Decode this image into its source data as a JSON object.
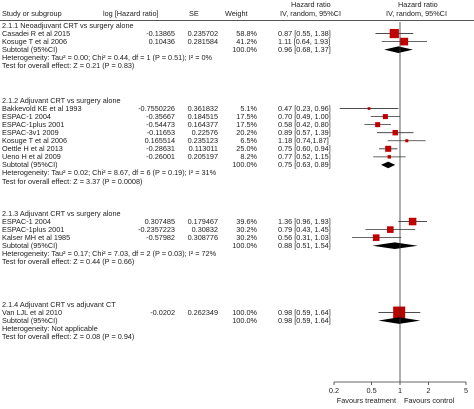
{
  "header": {
    "study": "Study or subgroup",
    "log_hr": "log [Hazard ratio]",
    "se": "SE",
    "weight": "Weight",
    "hr1_line1": "Hazard ratio",
    "hr1_line2": "IV, random, 95%CI",
    "hr2_line1": "Hazard ratio",
    "hr2_line2": "IV, random, 95%CI"
  },
  "chart_data": {
    "type": "forest",
    "x_scale": "log",
    "xlim": [
      0.2,
      5
    ],
    "x_ticks": [
      "0.2",
      "0.5",
      "1",
      "2",
      "5"
    ],
    "x_tick_values": [
      0.2,
      0.5,
      1,
      2,
      5
    ],
    "favours_left": "Favours treatment",
    "favours_right": "Favours control",
    "marker_color": "#c00000",
    "diamond_color": "#000000",
    "groups": [
      {
        "title": "2.1.1 Neoadjuvant CRT vs surgery alone",
        "studies": [
          {
            "name": "Casadei R et al 2015",
            "log_hr": "-0.13865",
            "se": "0.235702",
            "weight": "58.8%",
            "hr_text": "0.87 [0.55, 1.38]",
            "hr": 0.87,
            "lo": 0.55,
            "hi": 1.38,
            "w": 58.8
          },
          {
            "name": "Kosuge T et al 2006",
            "log_hr": "0.10436",
            "se": "0.281584",
            "weight": "41.2%",
            "hr_text": "1.11 [0.64, 1.93]",
            "hr": 1.11,
            "lo": 0.64,
            "hi": 1.93,
            "w": 41.2
          }
        ],
        "subtotal_label": "Subtotal (95%CI)",
        "subtotal_weight": "100.0%",
        "subtotal_text": "0.96 [0.68, 1.37]",
        "subtotal": {
          "hr": 0.96,
          "lo": 0.68,
          "hi": 1.37
        },
        "heterogeneity": "Heterogeneity: Tau² = 0.00; Chi² = 0.44, df = 1 (P = 0.51); I² = 0%",
        "overall": "Test for overall effect: Z = 0.21 (P = 0.83)"
      },
      {
        "title": "2.1.2 Adjuvant CRT vs surgery alone",
        "studies": [
          {
            "name": "Bakkevold KE et al 1993",
            "log_hr": "-0.7550226",
            "se": "0.361832",
            "weight": "5.1%",
            "hr_text": "0.47 [0.23, 0.96]",
            "hr": 0.47,
            "lo": 0.23,
            "hi": 0.96,
            "w": 5.1
          },
          {
            "name": "ESPAC-1 2004",
            "log_hr": "-0.35667",
            "se": "0.184515",
            "weight": "17.5%",
            "hr_text": "0.70 [0.49, 1.00]",
            "hr": 0.7,
            "lo": 0.49,
            "hi": 1.0,
            "w": 17.5
          },
          {
            "name": "ESPAC-1plus 2001",
            "log_hr": "-0.54473",
            "se": "0.164377",
            "weight": "17.5%",
            "hr_text": "0.58 [0.42, 0.80]",
            "hr": 0.58,
            "lo": 0.42,
            "hi": 0.8,
            "w": 17.5
          },
          {
            "name": "ESPAC-3v1 2009",
            "log_hr": "-0.11653",
            "se": "0.22576",
            "weight": "20.2%",
            "hr_text": "0.89 [0.57, 1.39]",
            "hr": 0.89,
            "lo": 0.57,
            "hi": 1.39,
            "w": 20.2
          },
          {
            "name": "Kosuge T et al 2006",
            "log_hr": "0.165514",
            "se": "0.235123",
            "weight": "6.5%",
            "hr_text": "1.18 [0.74,1.87]",
            "hr": 1.18,
            "lo": 0.74,
            "hi": 1.87,
            "w": 6.5
          },
          {
            "name": "Oettle H et al 2013",
            "log_hr": "-0.28631",
            "se": "0.113011",
            "weight": "25.0%",
            "hr_text": "0.75 [0.60, 0.94]",
            "hr": 0.75,
            "lo": 0.6,
            "hi": 0.94,
            "w": 25.0
          },
          {
            "name": "Ueno H et al 2009",
            "log_hr": "-0.26001",
            "se": "0.205197",
            "weight": "8.2%",
            "hr_text": "0.77 [0.52, 1.15]",
            "hr": 0.77,
            "lo": 0.52,
            "hi": 1.15,
            "w": 8.2
          }
        ],
        "subtotal_label": "Subtotal (95%CI)",
        "subtotal_weight": "100.0%",
        "subtotal_text": "0.75 [0.63, 0.89]",
        "subtotal": {
          "hr": 0.75,
          "lo": 0.63,
          "hi": 0.89
        },
        "heterogeneity": "Heterogeneity: Tau² = 0.02; Chi² = 8.67, df = 6 (P = 0.19); I² = 31%",
        "overall": "Test for overall effect: Z = 3.37 (P = 0.0008)"
      },
      {
        "title": "2.1.3 Adjuvant CRT vs surgery alone",
        "studies": [
          {
            "name": "ESPAC-1 2004",
            "log_hr": "0.307485",
            "se": "0.179467",
            "weight": "39.6%",
            "hr_text": "1.36 [0.96, 1.93]",
            "hr": 1.36,
            "lo": 0.96,
            "hi": 1.93,
            "w": 39.6
          },
          {
            "name": "ESPAC-1plus 2001",
            "log_hr": "-0.2357223",
            "se": "0.30832",
            "weight": "30.2%",
            "hr_text": "0.79 [0.43, 1.45]",
            "hr": 0.79,
            "lo": 0.43,
            "hi": 1.45,
            "w": 30.2
          },
          {
            "name": "Kalser MH et al 1985",
            "log_hr": "-0.57982",
            "se": "0.308776",
            "weight": "30.2%",
            "hr_text": "0.56 [0.31, 1.03]",
            "hr": 0.56,
            "lo": 0.31,
            "hi": 1.03,
            "w": 30.2
          }
        ],
        "subtotal_label": "Subtotal (95%CI)",
        "subtotal_weight": "100.0%",
        "subtotal_text": "0.88 [0.51, 1.54]",
        "subtotal": {
          "hr": 0.88,
          "lo": 0.51,
          "hi": 1.54
        },
        "heterogeneity": "Heterogeneity: Tau² = 0.17; Chi² = 7.03, df = 2 (P = 0.03); I² = 72%",
        "overall": "Test for overall effect: Z = 0.44 (P = 0.66)"
      },
      {
        "title": "2.1.4 Adjuvant CRT vs adjuvant CT",
        "studies": [
          {
            "name": "Van LJL et al 2010",
            "log_hr": "-0.0202",
            "se": "0.262349",
            "weight": "100.0%",
            "hr_text": "0.98 [0.59, 1.64]",
            "hr": 0.98,
            "lo": 0.59,
            "hi": 1.64,
            "w": 100.0
          }
        ],
        "subtotal_label": "Subtotal (95%CI)",
        "subtotal_weight": "100.0%",
        "subtotal_text": "0.98 [0.59, 1.64]",
        "subtotal": {
          "hr": 0.98,
          "lo": 0.59,
          "hi": 1.64
        },
        "heterogeneity": "Heterogeneity: Not applicable",
        "overall": "Test for overall effect: Z = 0.08 (P = 0.94)"
      }
    ]
  }
}
